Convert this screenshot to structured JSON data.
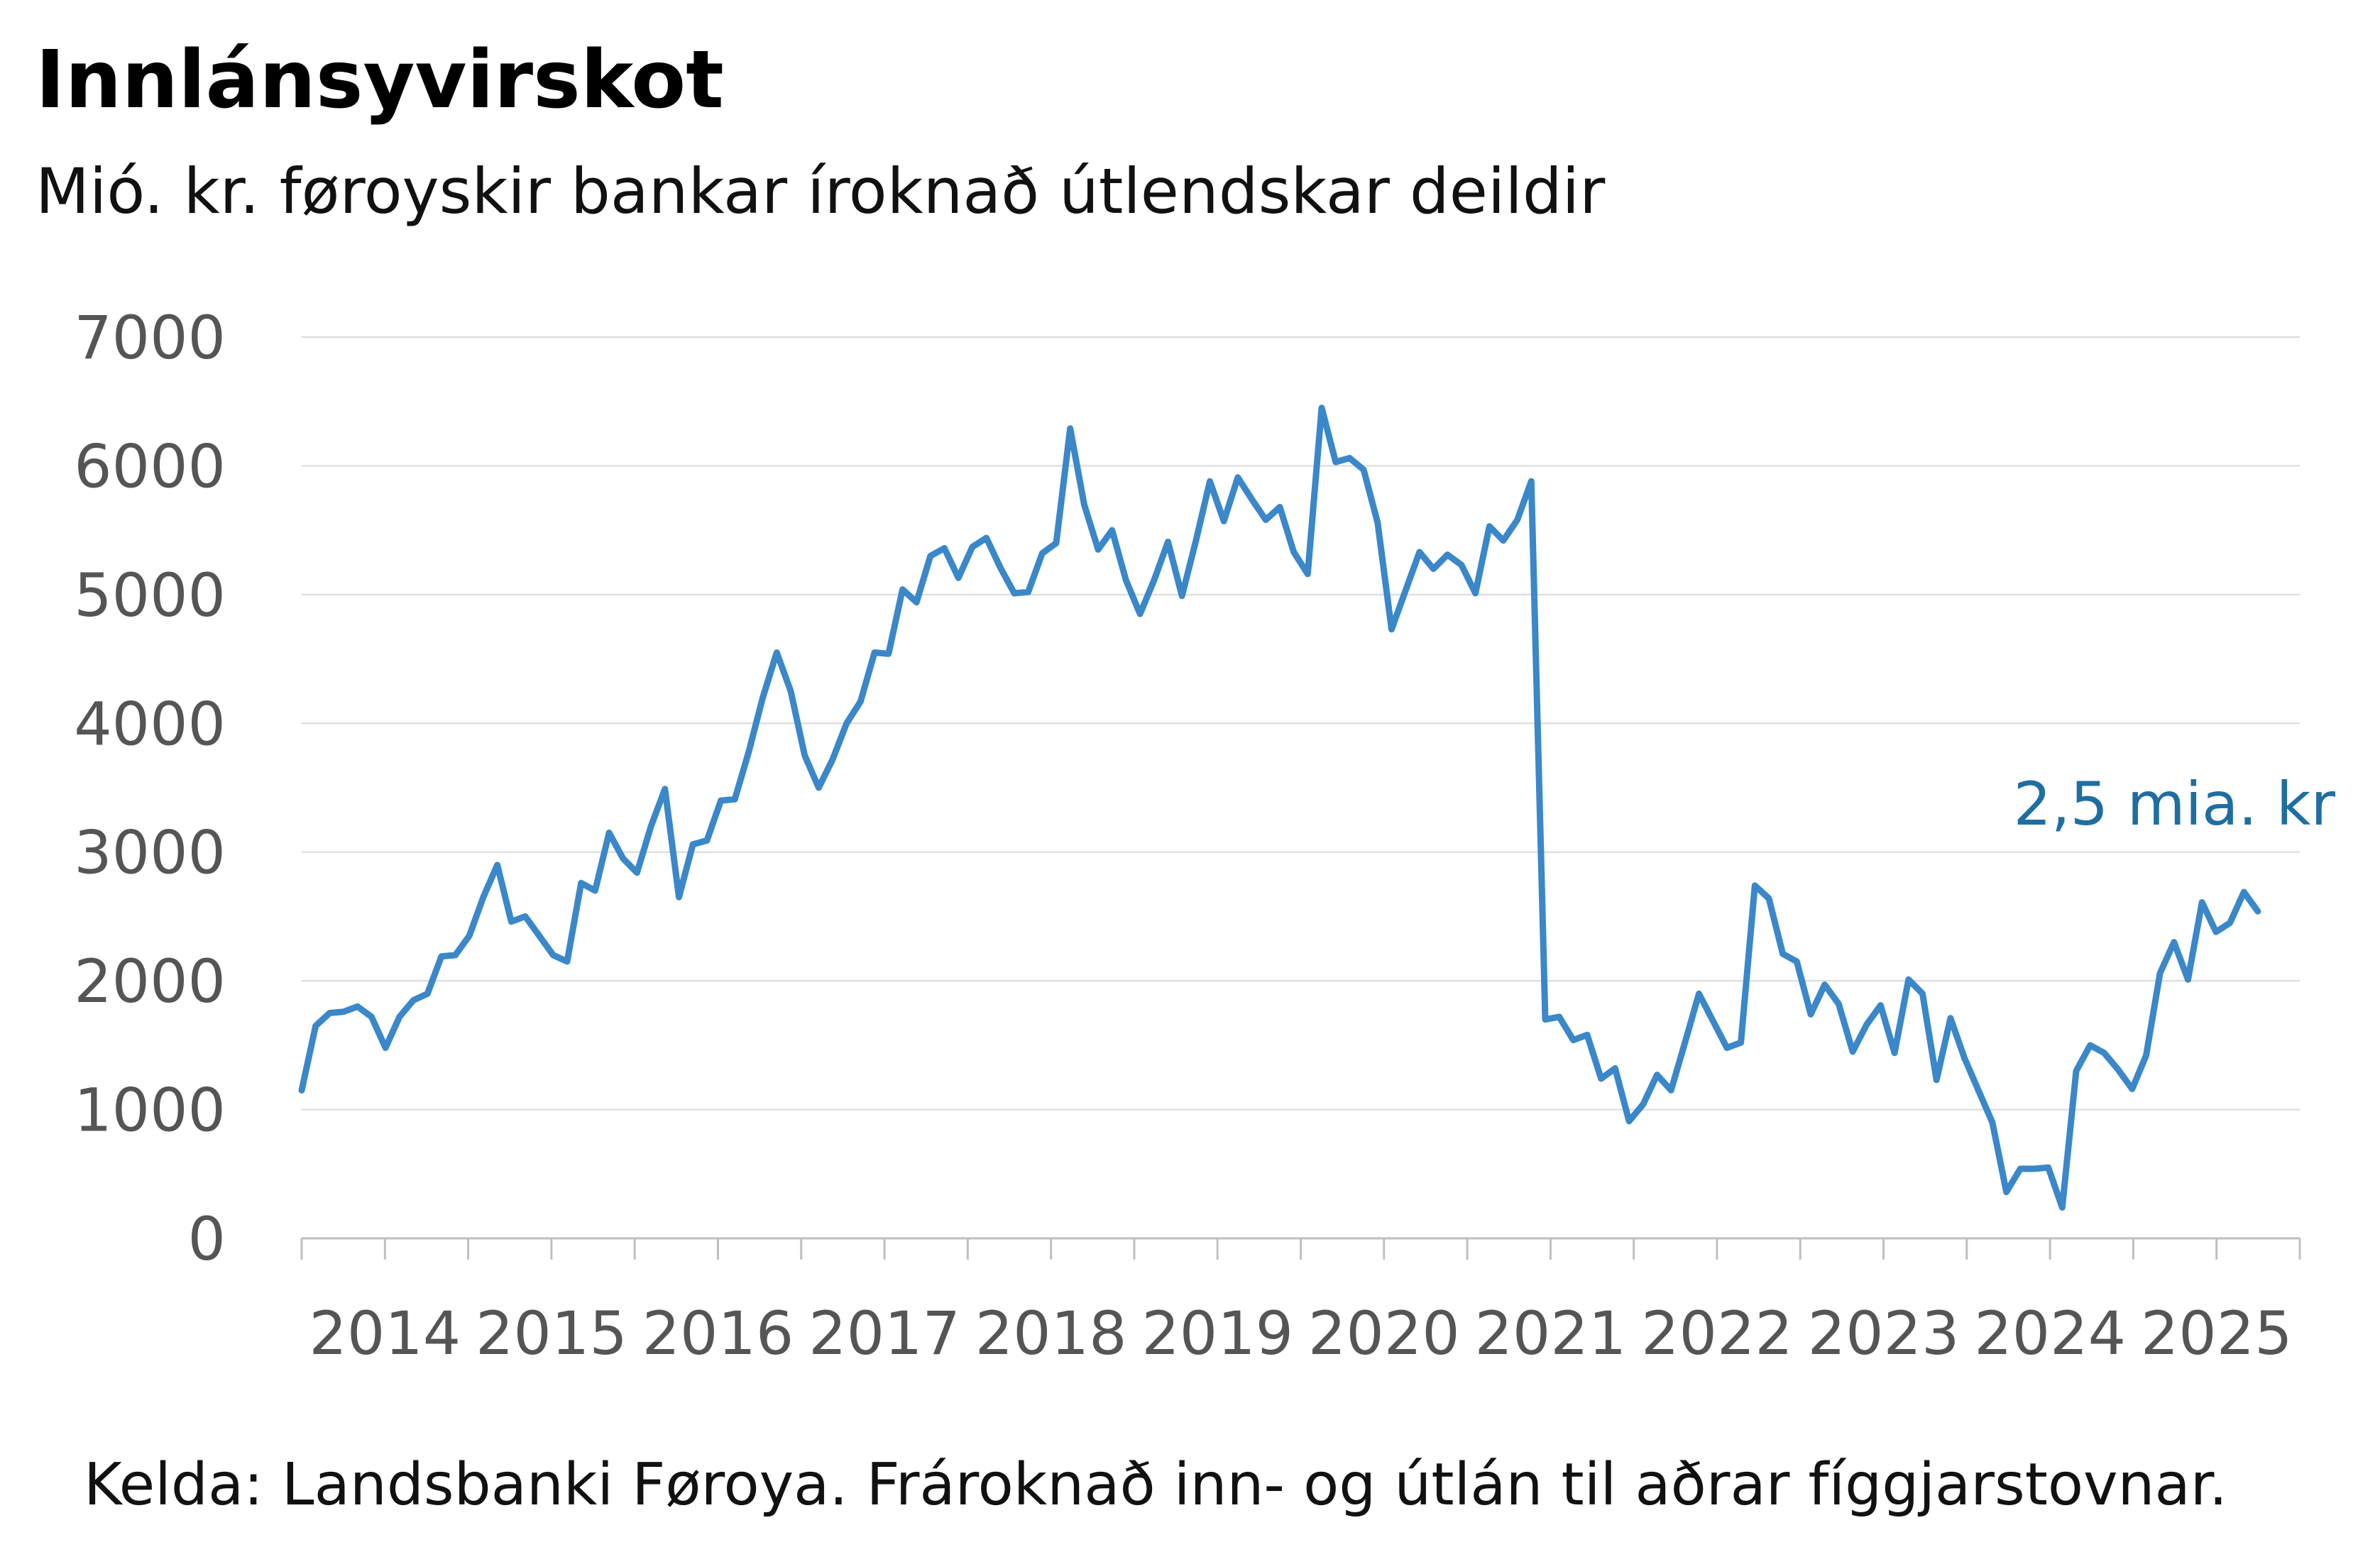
{
  "chart_data": {
    "type": "line",
    "title": "Innlánsyvirskot",
    "subtitle": "Mió. kr. føroyskir bankar íroknað útlendskar deildir",
    "source": "Kelda: Landsbanki Føroya. Frároknað inn- og útlán til aðrar fíggjarstovnar.",
    "ylim": [
      0,
      7000
    ],
    "y_ticks": [
      0,
      1000,
      2000,
      3000,
      4000,
      5000,
      6000,
      7000
    ],
    "x_tick_labels": [
      "2014",
      "2015",
      "2016",
      "2017",
      "2018",
      "2019",
      "2020",
      "2021",
      "2022",
      "2023",
      "2024",
      "2025"
    ],
    "grid": true,
    "annotation": "2,5 mia. kr",
    "line_color": "#3a87c9",
    "start": "2014-01",
    "series": [
      {
        "values": [
          1150,
          1650,
          1750,
          1760,
          1800,
          1720,
          1480,
          1720,
          1850,
          1900,
          2190,
          2200,
          2350,
          2650,
          2900,
          2460,
          2500,
          2350,
          2200,
          2150,
          2760,
          2700,
          3150,
          2950,
          2840,
          3200,
          3490,
          2650,
          3060,
          3090,
          3400,
          3410,
          3780,
          4200,
          4550,
          4250,
          3750,
          3500,
          3720,
          4000,
          4170,
          4550,
          4540,
          5040,
          4940,
          5300,
          5360,
          5130,
          5370,
          5440,
          5210,
          5010,
          5020,
          5320,
          5400,
          6290,
          5700,
          5350,
          5500,
          5110,
          4850,
          5110,
          5410,
          4990,
          5420,
          5880,
          5570,
          5910,
          5740,
          5580,
          5680,
          5330,
          5160,
          6450,
          6030,
          6060,
          5970,
          5560,
          4730,
          5030,
          5330,
          5200,
          5310,
          5230,
          5010,
          5530,
          5420,
          5580,
          5880,
          1700,
          1720,
          1540,
          1580,
          1240,
          1320,
          910,
          1040,
          1270,
          1150,
          1520,
          1900,
          1690,
          1480,
          1520,
          2740,
          2640,
          2210,
          2150,
          1740,
          1970,
          1820,
          1450,
          1660,
          1810,
          1440,
          2010,
          1900,
          1230,
          1710,
          1400,
          1150,
          900,
          360,
          540,
          540,
          550,
          240,
          1300,
          1500,
          1440,
          1310,
          1160,
          1420,
          2060,
          2300,
          2010,
          2610,
          2380,
          2450,
          2690,
          2540
        ]
      }
    ]
  }
}
